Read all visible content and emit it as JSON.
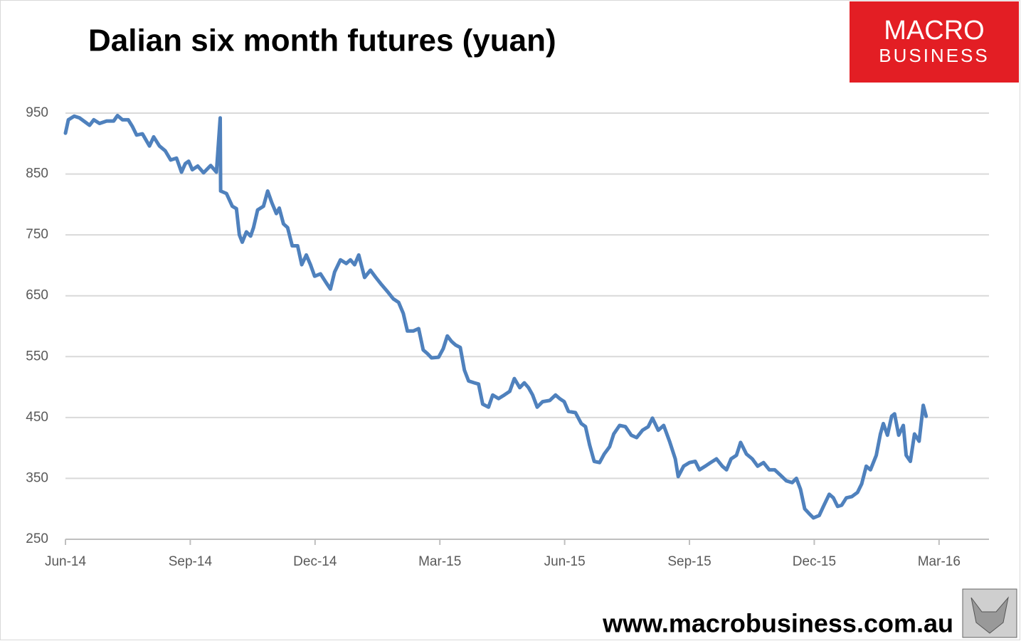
{
  "chart_data": {
    "type": "line",
    "title": "Dalian six month futures (yuan)",
    "color": "#4f81bd",
    "grid": true,
    "xlim": [
      0,
      22.2
    ],
    "xticks": [
      {
        "value": 0,
        "label": "Jun-14"
      },
      {
        "value": 3,
        "label": "Sep-14"
      },
      {
        "value": 6,
        "label": "Dec-14"
      },
      {
        "value": 9,
        "label": "Mar-15"
      },
      {
        "value": 12,
        "label": "Jun-15"
      },
      {
        "value": 15,
        "label": "Sep-15"
      },
      {
        "value": 18,
        "label": "Dec-15"
      },
      {
        "value": 21,
        "label": "Mar-16"
      }
    ],
    "ylim": [
      250,
      950
    ],
    "yticks": [
      250,
      350,
      450,
      550,
      650,
      750,
      850,
      950
    ],
    "x": [
      0,
      0.07,
      0.21,
      0.34,
      0.48,
      0.58,
      0.68,
      0.82,
      0.99,
      1.16,
      1.25,
      1.37,
      1.51,
      1.61,
      1.71,
      1.85,
      2.02,
      2.12,
      2.26,
      2.4,
      2.53,
      2.67,
      2.79,
      2.88,
      2.96,
      3.05,
      3.18,
      3.32,
      3.49,
      3.63,
      3.72,
      3.73,
      3.87,
      4.01,
      4.11,
      4.18,
      4.25,
      4.35,
      4.45,
      4.52,
      4.62,
      4.76,
      4.86,
      4.96,
      5.07,
      5.14,
      5.24,
      5.34,
      5.45,
      5.58,
      5.68,
      5.79,
      5.89,
      5.99,
      6.13,
      6.27,
      6.37,
      6.47,
      6.61,
      6.75,
      6.85,
      6.95,
      7.05,
      7.19,
      7.33,
      7.46,
      7.6,
      7.74,
      7.88,
      8.01,
      8.12,
      8.22,
      8.36,
      8.49,
      8.6,
      8.7,
      8.8,
      8.97,
      9.08,
      9.18,
      9.28,
      9.38,
      9.49,
      9.59,
      9.69,
      9.83,
      9.93,
      10.03,
      10.17,
      10.27,
      10.41,
      10.55,
      10.68,
      10.79,
      10.92,
      11.03,
      11.13,
      11.23,
      11.34,
      11.47,
      11.64,
      11.78,
      11.88,
      11.99,
      12.09,
      12.26,
      12.4,
      12.5,
      12.6,
      12.71,
      12.84,
      12.95,
      13.08,
      13.18,
      13.32,
      13.46,
      13.6,
      13.73,
      13.87,
      14.01,
      14.11,
      14.25,
      14.38,
      14.52,
      14.66,
      14.73,
      14.86,
      15,
      15.14,
      15.24,
      15.38,
      15.51,
      15.65,
      15.79,
      15.89,
      16,
      16.13,
      16.23,
      16.37,
      16.51,
      16.64,
      16.78,
      16.92,
      17.05,
      17.19,
      17.33,
      17.47,
      17.57,
      17.67,
      17.77,
      17.88,
      17.98,
      18.12,
      18.22,
      18.36,
      18.46,
      18.56,
      18.66,
      18.77,
      18.9,
      19.04,
      19.14,
      19.25,
      19.35,
      19.49,
      19.59,
      19.66,
      19.76,
      19.86,
      19.93,
      20.03,
      20.14,
      20.21,
      20.31,
      20.41,
      20.52,
      20.62,
      20.69
    ],
    "values": [
      917,
      939,
      945,
      942,
      935,
      930,
      939,
      933,
      937,
      937,
      946,
      939,
      939,
      928,
      914,
      916,
      896,
      911,
      896,
      888,
      873,
      876,
      853,
      867,
      871,
      857,
      863,
      852,
      864,
      853,
      942,
      822,
      818,
      797,
      793,
      750,
      738,
      755,
      748,
      762,
      791,
      797,
      822,
      803,
      785,
      794,
      768,
      762,
      732,
      732,
      701,
      717,
      701,
      682,
      686,
      671,
      661,
      689,
      709,
      703,
      709,
      701,
      717,
      680,
      692,
      680,
      668,
      657,
      645,
      639,
      621,
      592,
      592,
      596,
      561,
      555,
      548,
      549,
      563,
      584,
      575,
      569,
      565,
      528,
      510,
      507,
      505,
      472,
      467,
      487,
      481,
      487,
      493,
      514,
      499,
      507,
      499,
      487,
      467,
      476,
      478,
      487,
      481,
      476,
      460,
      458,
      440,
      435,
      405,
      378,
      376,
      390,
      402,
      423,
      437,
      435,
      421,
      417,
      429,
      435,
      449,
      429,
      437,
      411,
      382,
      353,
      370,
      376,
      378,
      364,
      370,
      376,
      382,
      370,
      364,
      382,
      388,
      409,
      390,
      382,
      370,
      376,
      364,
      364,
      355,
      346,
      343,
      350,
      332,
      300,
      292,
      285,
      289,
      304,
      324,
      318,
      304,
      306,
      318,
      320,
      327,
      341,
      370,
      364,
      388,
      423,
      440,
      421,
      452,
      456,
      421,
      437,
      388,
      378,
      423,
      411,
      470,
      452
    ]
  },
  "brand": {
    "logo_top": "MACRO",
    "logo_bottom": "BUSINESS",
    "website": "www.macrobusiness.com.au"
  }
}
